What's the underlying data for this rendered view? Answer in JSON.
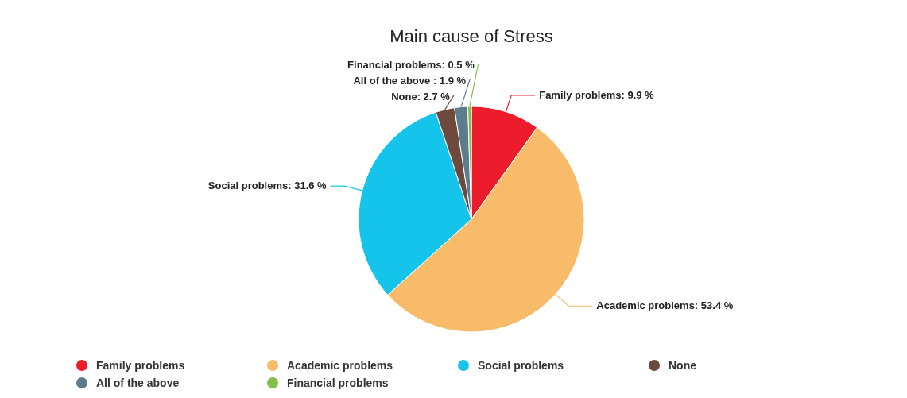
{
  "chart_data": {
    "type": "pie",
    "title": "Main cause of Stress",
    "categories": [
      "Family problems",
      "Academic problems",
      "Social problems",
      "None",
      "All of the above",
      "Financial problems"
    ],
    "values": [
      9.9,
      53.4,
      31.6,
      2.7,
      1.9,
      0.5
    ],
    "colors": [
      "#ec1c2c",
      "#f7bb6a",
      "#14c4ea",
      "#6e4a3e",
      "#5c7d8c",
      "#7fbf4a"
    ],
    "value_labels": [
      "Family problems: 9.9 %",
      "Academic problems: 53.4 %",
      "Social problems: 31.6 %",
      "None: 2.7 %",
      "All of the above : 1.9 %",
      "Financial problems: 0.5 %"
    ],
    "legend": "bottom"
  }
}
